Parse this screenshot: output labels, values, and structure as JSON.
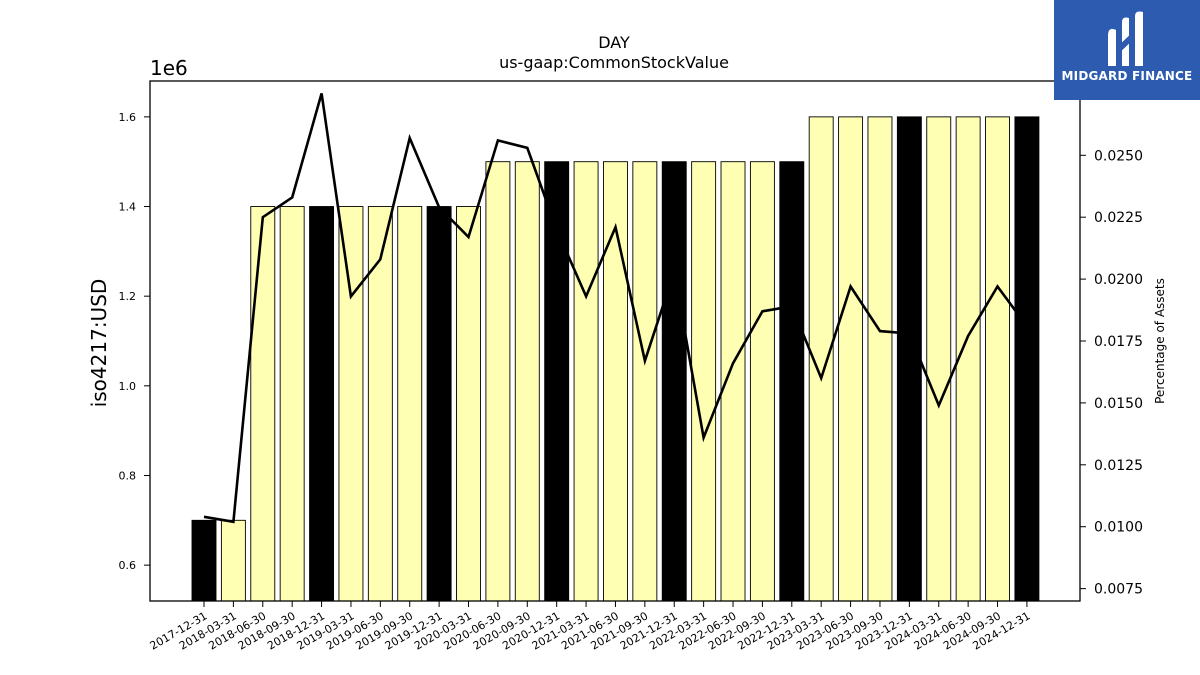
{
  "chart_data": {
    "type": "bar",
    "title": "DAY",
    "subtitle": "us-gaap:CommonStockValue",
    "ylabel": "iso4217:USD",
    "y_multiplier_label": "1e6",
    "y2label": "Percentage of Assets",
    "ylim": [
      0.52,
      1.68
    ],
    "y2lim": [
      0.007,
      0.028
    ],
    "yticks": [
      "0.6",
      "0.8",
      "1.0",
      "1.2",
      "1.4",
      "1.6"
    ],
    "y2ticks": [
      "0.0075",
      "0.0100",
      "0.0125",
      "0.0150",
      "0.0175",
      "0.0200",
      "0.0225",
      "0.0250"
    ],
    "grid": false,
    "categories": [
      "2017-12-31",
      "2018-03-31",
      "2018-06-30",
      "2018-09-30",
      "2018-12-31",
      "2019-03-31",
      "2019-06-30",
      "2019-09-30",
      "2019-12-31",
      "2020-03-31",
      "2020-06-30",
      "2020-09-30",
      "2020-12-31",
      "2021-03-31",
      "2021-06-30",
      "2021-09-30",
      "2021-12-31",
      "2022-03-31",
      "2022-06-30",
      "2022-09-30",
      "2022-12-31",
      "2023-03-31",
      "2023-06-30",
      "2023-09-30",
      "2023-12-31",
      "2024-03-31",
      "2024-06-30",
      "2024-09-30",
      "2024-12-31"
    ],
    "series": [
      {
        "type": "bar",
        "values": [
          0.7,
          0.7,
          1.4,
          1.4,
          1.4,
          1.4,
          1.4,
          1.4,
          1.4,
          1.4,
          1.5,
          1.5,
          1.5,
          1.5,
          1.5,
          1.5,
          1.5,
          1.5,
          1.5,
          1.5,
          1.5,
          1.6,
          1.6,
          1.6,
          1.6,
          1.6,
          1.6,
          1.6,
          1.6
        ],
        "bar_colors": [
          "#000000",
          "#ffffb3",
          "#ffffb3",
          "#ffffb3",
          "#000000",
          "#ffffb3",
          "#ffffb3",
          "#ffffb3",
          "#000000",
          "#ffffb3",
          "#ffffb3",
          "#ffffb3",
          "#000000",
          "#ffffb3",
          "#ffffb3",
          "#ffffb3",
          "#000000",
          "#ffffb3",
          "#ffffb3",
          "#ffffb3",
          "#000000",
          "#ffffb3",
          "#ffffb3",
          "#ffffb3",
          "#000000",
          "#ffffb3",
          "#ffffb3",
          "#ffffb3",
          "#000000"
        ]
      },
      {
        "type": "line",
        "axis": "right",
        "color": "#000000",
        "values": [
          0.0104,
          0.0102,
          0.0225,
          0.0233,
          0.0275,
          0.0193,
          0.0208,
          0.0257,
          0.0229,
          0.0217,
          0.0256,
          0.0253,
          0.022,
          0.0193,
          0.0221,
          0.0167,
          0.0203,
          0.0136,
          0.0166,
          0.0187,
          0.0189,
          0.016,
          0.0197,
          0.0179,
          0.0178,
          0.0149,
          0.0177,
          0.0197,
          0.0181
        ]
      }
    ]
  },
  "logo": {
    "text": "MIDGARD FINANCE",
    "background": "#2d5bb0"
  }
}
